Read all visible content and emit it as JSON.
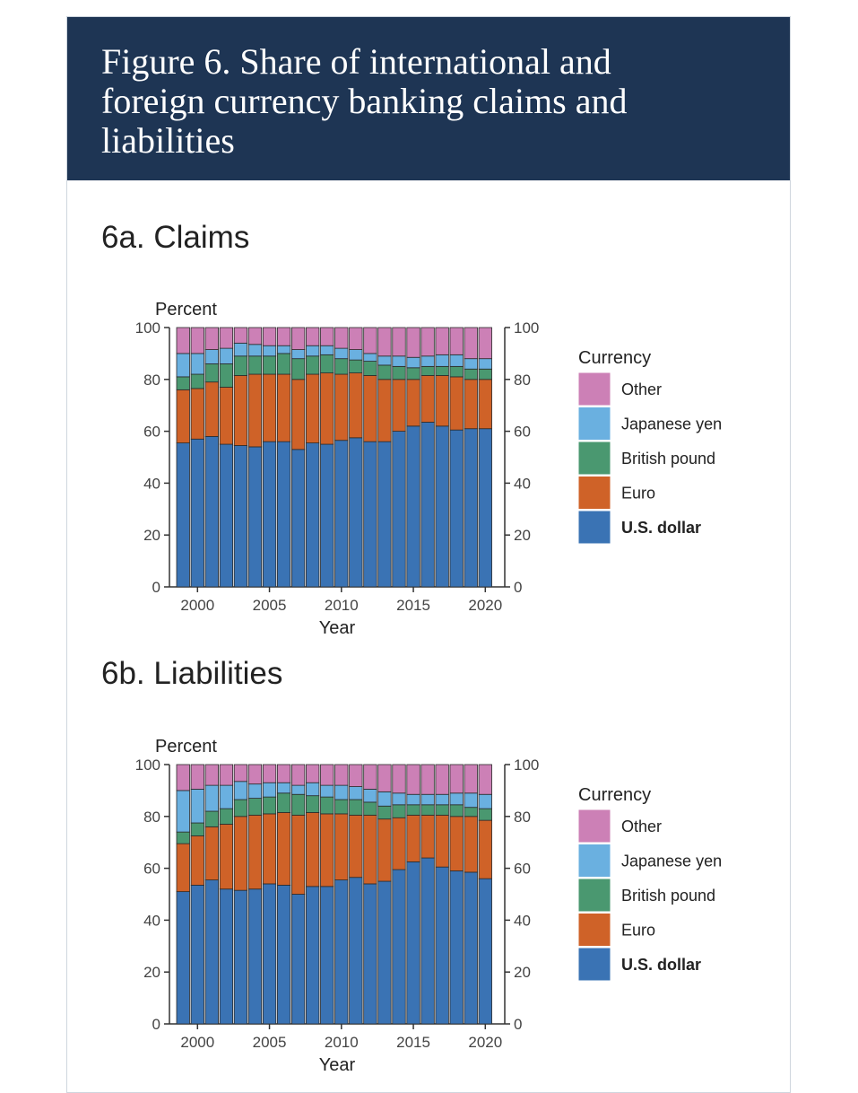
{
  "figure": {
    "title": "Figure 6. Share of international and\nforeign currency banking claims and\nliabilities"
  },
  "chart_data": [
    {
      "type": "bar",
      "stacked": true,
      "subtitle": "6a. Claims",
      "ylabel": "Percent",
      "xlabel": "Year",
      "ylim": [
        0,
        100
      ],
      "yticks": [
        0,
        20,
        40,
        60,
        80,
        100
      ],
      "xticks": [
        2000,
        2005,
        2010,
        2015,
        2020
      ],
      "legend_title": "Currency",
      "legend_position": "right",
      "categories": [
        1999,
        2000,
        2001,
        2002,
        2003,
        2004,
        2005,
        2006,
        2007,
        2008,
        2009,
        2010,
        2011,
        2012,
        2013,
        2014,
        2015,
        2016,
        2017,
        2018,
        2019,
        2020
      ],
      "series": [
        {
          "name": "U.S. dollar",
          "color": "#3a73b4",
          "values": [
            55.5,
            57,
            58,
            55,
            54.5,
            54,
            56,
            56,
            53,
            55.5,
            55,
            56.5,
            57.5,
            56,
            56,
            60,
            62,
            63.5,
            62,
            60.5,
            61,
            61
          ]
        },
        {
          "name": "Euro",
          "color": "#cf6228",
          "values": [
            20.5,
            19.5,
            21,
            22,
            27,
            28,
            26,
            26,
            27,
            26.5,
            27.5,
            25.5,
            25,
            25.5,
            24,
            20,
            18,
            18,
            19.5,
            20.5,
            19,
            19
          ]
        },
        {
          "name": "British pound",
          "color": "#4a9870",
          "values": [
            5,
            5.5,
            7,
            9,
            7.5,
            7,
            7,
            8,
            8,
            7,
            7,
            6,
            5,
            5.5,
            5.5,
            5,
            4.5,
            3.5,
            3.5,
            4,
            4,
            4
          ]
        },
        {
          "name": "Japanese yen",
          "color": "#6ab0e0",
          "values": [
            9,
            8,
            5.5,
            6,
            5,
            4.5,
            4,
            3,
            3.5,
            4,
            3.5,
            4,
            4,
            3,
            3.5,
            4,
            4,
            4,
            4.5,
            4.5,
            4,
            4
          ]
        },
        {
          "name": "Other",
          "color": "#cc80b6",
          "values": [
            10,
            10,
            8.5,
            8,
            6,
            6.5,
            7,
            7,
            8.5,
            7,
            7,
            8,
            8.5,
            10,
            11,
            11,
            11.5,
            11,
            10.5,
            10.5,
            12,
            12
          ]
        }
      ]
    },
    {
      "type": "bar",
      "stacked": true,
      "subtitle": "6b. Liabilities",
      "ylabel": "Percent",
      "xlabel": "Year",
      "ylim": [
        0,
        100
      ],
      "yticks": [
        0,
        20,
        40,
        60,
        80,
        100
      ],
      "xticks": [
        2000,
        2005,
        2010,
        2015,
        2020
      ],
      "legend_title": "Currency",
      "legend_position": "right",
      "categories": [
        1999,
        2000,
        2001,
        2002,
        2003,
        2004,
        2005,
        2006,
        2007,
        2008,
        2009,
        2010,
        2011,
        2012,
        2013,
        2014,
        2015,
        2016,
        2017,
        2018,
        2019,
        2020
      ],
      "series": [
        {
          "name": "U.S. dollar",
          "color": "#3a73b4",
          "values": [
            51,
            53.5,
            55.5,
            52,
            51.5,
            52,
            54,
            53.5,
            50,
            53,
            53,
            55.5,
            56.5,
            54,
            55,
            59.5,
            62.5,
            64,
            60.5,
            59,
            58.5,
            56
          ]
        },
        {
          "name": "Euro",
          "color": "#cf6228",
          "values": [
            18.5,
            19,
            20.5,
            25,
            28.5,
            28.5,
            27,
            28,
            30.5,
            28.5,
            28,
            25.5,
            24,
            26.5,
            24,
            20,
            18,
            16.5,
            20,
            21,
            21.5,
            22.5
          ]
        },
        {
          "name": "British pound",
          "color": "#4a9870",
          "values": [
            4.5,
            5,
            6,
            6,
            6.5,
            6.5,
            6.5,
            7.5,
            8,
            6.5,
            6.5,
            5.5,
            6,
            5,
            5,
            5,
            4,
            4,
            4,
            4.5,
            3.5,
            4.5
          ]
        },
        {
          "name": "Japanese yen",
          "color": "#6ab0e0",
          "values": [
            16,
            13,
            10,
            9,
            7,
            5.5,
            5.5,
            4,
            3.5,
            5,
            4.5,
            5.5,
            5,
            5,
            5.5,
            4.5,
            4,
            4,
            4,
            4.5,
            5.5,
            5.5
          ]
        },
        {
          "name": "Other",
          "color": "#cc80b6",
          "values": [
            10,
            9.5,
            8,
            8,
            6.5,
            7.5,
            7,
            7,
            8,
            7,
            8,
            8,
            8.5,
            9.5,
            10.5,
            11,
            11.5,
            11.5,
            11.5,
            11,
            11,
            11.5
          ]
        }
      ]
    }
  ]
}
